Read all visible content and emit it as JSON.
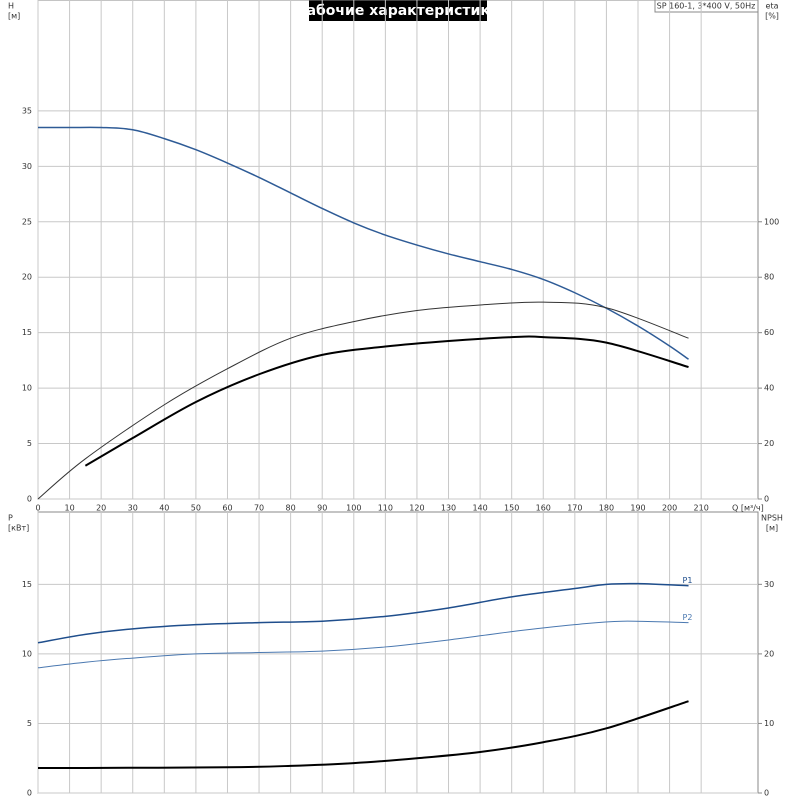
{
  "chart_data": [
    {
      "type": "line",
      "title": "Рабочие характеристики",
      "subtitle": "SP 160-1, 3*400 V, 50Hz",
      "xlabel": "Q [м³/ч]",
      "ylabel": "H",
      "ylabel_unit": "[м]",
      "y2label": "eta",
      "y2label_unit": "[%]",
      "xlim": [
        0,
        228
      ],
      "xticks": [
        0,
        10,
        20,
        30,
        40,
        50,
        60,
        70,
        80,
        90,
        100,
        110,
        120,
        130,
        140,
        150,
        160,
        170,
        180,
        190,
        200,
        210
      ],
      "ylim": [
        0,
        45
      ],
      "yticks": [
        0,
        5,
        10,
        15,
        20,
        25,
        30,
        35
      ],
      "y2lim": [
        0,
        180
      ],
      "y2ticks": [
        0,
        20,
        40,
        60,
        80,
        100
      ],
      "grid": true,
      "series": [
        {
          "color": "#2e5b96",
          "width": 1.5,
          "x": [
            0,
            10,
            20,
            30,
            40,
            50,
            60,
            70,
            80,
            90,
            100,
            110,
            120,
            130,
            140,
            150,
            160,
            170,
            180,
            190,
            200,
            206
          ],
          "values": [
            33.5,
            33.5,
            33.5,
            33.3,
            32.5,
            31.5,
            30.3,
            29,
            27.6,
            26.2,
            24.9,
            23.8,
            22.9,
            22.1,
            21.4,
            20.7,
            19.8,
            18.6,
            17.2,
            15.6,
            13.8,
            12.6
          ]
        },
        {
          "color": "#333333",
          "width": 1,
          "axis": "y2",
          "x": [
            0,
            15,
            40,
            60,
            80,
            100,
            120,
            140,
            160,
            180,
            206
          ],
          "values": [
            0,
            14.5,
            34,
            47,
            58,
            64,
            68,
            70,
            71,
            69,
            58
          ]
        },
        {
          "color": "#000000",
          "width": 2,
          "axis": "y2",
          "x": [
            15,
            30,
            50,
            70,
            90,
            110,
            130,
            150,
            160,
            180,
            206
          ],
          "values": [
            12,
            22,
            35,
            45,
            52,
            55,
            57,
            58.4,
            58.4,
            56.4,
            47.6
          ]
        }
      ]
    },
    {
      "type": "line",
      "ylabel": "P",
      "ylabel_unit": "[кВт]",
      "y2label": "NPSH",
      "y2label_unit": "[м]",
      "xlim": [
        0,
        228
      ],
      "ylim": [
        0,
        20.2
      ],
      "yticks": [
        0,
        5,
        10,
        15
      ],
      "y2lim": [
        0,
        40.4
      ],
      "y2ticks": [
        0,
        10,
        20,
        30
      ],
      "grid": true,
      "series": [
        {
          "name": "P1",
          "color": "#1f4e8c",
          "width": 1.5,
          "x": [
            0,
            15,
            30,
            50,
            70,
            90,
            110,
            130,
            150,
            170,
            180,
            190,
            206
          ],
          "values": [
            10.8,
            11.4,
            11.8,
            12.1,
            12.25,
            12.35,
            12.7,
            13.3,
            14.1,
            14.7,
            15,
            15.05,
            14.9
          ]
        },
        {
          "name": "P2",
          "color": "#4a78b0",
          "width": 1,
          "x": [
            0,
            15,
            30,
            50,
            70,
            90,
            110,
            130,
            150,
            170,
            185,
            206
          ],
          "values": [
            9,
            9.4,
            9.7,
            10,
            10.1,
            10.2,
            10.5,
            11,
            11.6,
            12.1,
            12.35,
            12.25
          ]
        },
        {
          "color": "#000000",
          "width": 2,
          "axis": "y2",
          "x": [
            0,
            15,
            60,
            80,
            100,
            120,
            140,
            160,
            180,
            206
          ],
          "values": [
            3.6,
            3.6,
            3.7,
            3.9,
            4.3,
            5,
            5.9,
            7.3,
            9.3,
            13.2
          ]
        }
      ]
    }
  ]
}
